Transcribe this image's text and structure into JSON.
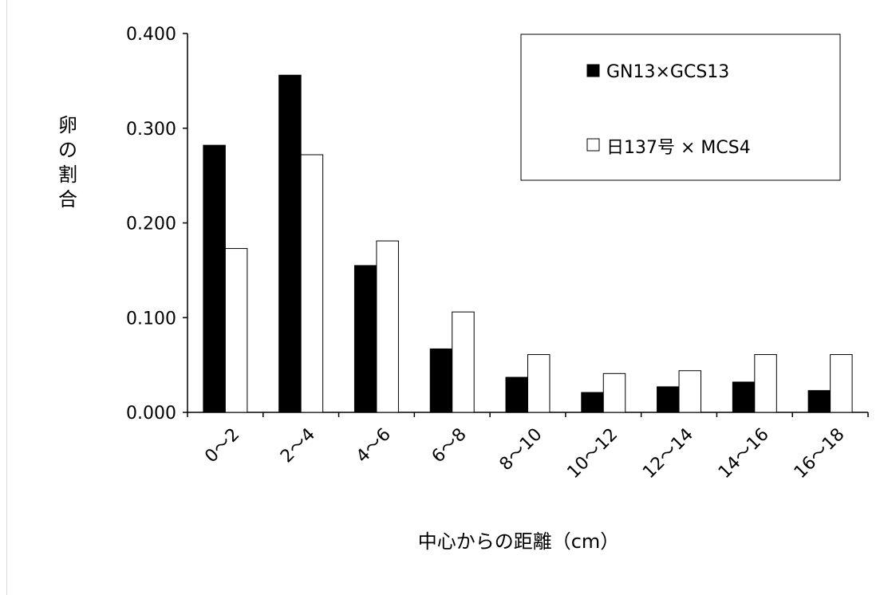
{
  "chart_data": {
    "type": "bar",
    "title": "",
    "xlabel": "中心からの距離（cm）",
    "ylabel": "卵の割合",
    "ylim": [
      0,
      0.4
    ],
    "yticks": [
      "0.000",
      "0.100",
      "0.200",
      "0.300",
      "0.400"
    ],
    "categories": [
      "0〜2",
      "2〜4",
      "4〜6",
      "6〜8",
      "8〜10",
      "10〜12",
      "12〜14",
      "14〜16",
      "16〜18"
    ],
    "series": [
      {
        "name": "GN13×GCS13",
        "color": "#000000",
        "values": [
          0.282,
          0.356,
          0.155,
          0.067,
          0.037,
          0.021,
          0.027,
          0.032,
          0.023
        ]
      },
      {
        "name": "日137号 × MCS4",
        "color": "#ffffff",
        "values": [
          0.173,
          0.272,
          0.181,
          0.106,
          0.061,
          0.041,
          0.044,
          0.061,
          0.061
        ]
      }
    ],
    "grid": false,
    "legend_position": "top-right"
  }
}
